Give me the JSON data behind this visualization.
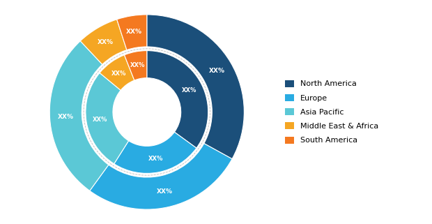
{
  "title": "",
  "categories": [
    "North America",
    "Europe",
    "Asia Pacific",
    "Middle East & Africa",
    "South America"
  ],
  "outer_values": [
    33,
    27,
    28,
    7,
    5
  ],
  "inner_values": [
    35,
    24,
    27,
    8,
    6
  ],
  "colors": [
    "#1b4f7a",
    "#29abe2",
    "#5bc8d6",
    "#f5a623",
    "#f47920"
  ],
  "label_text": "XX%",
  "background_color": "#ffffff"
}
